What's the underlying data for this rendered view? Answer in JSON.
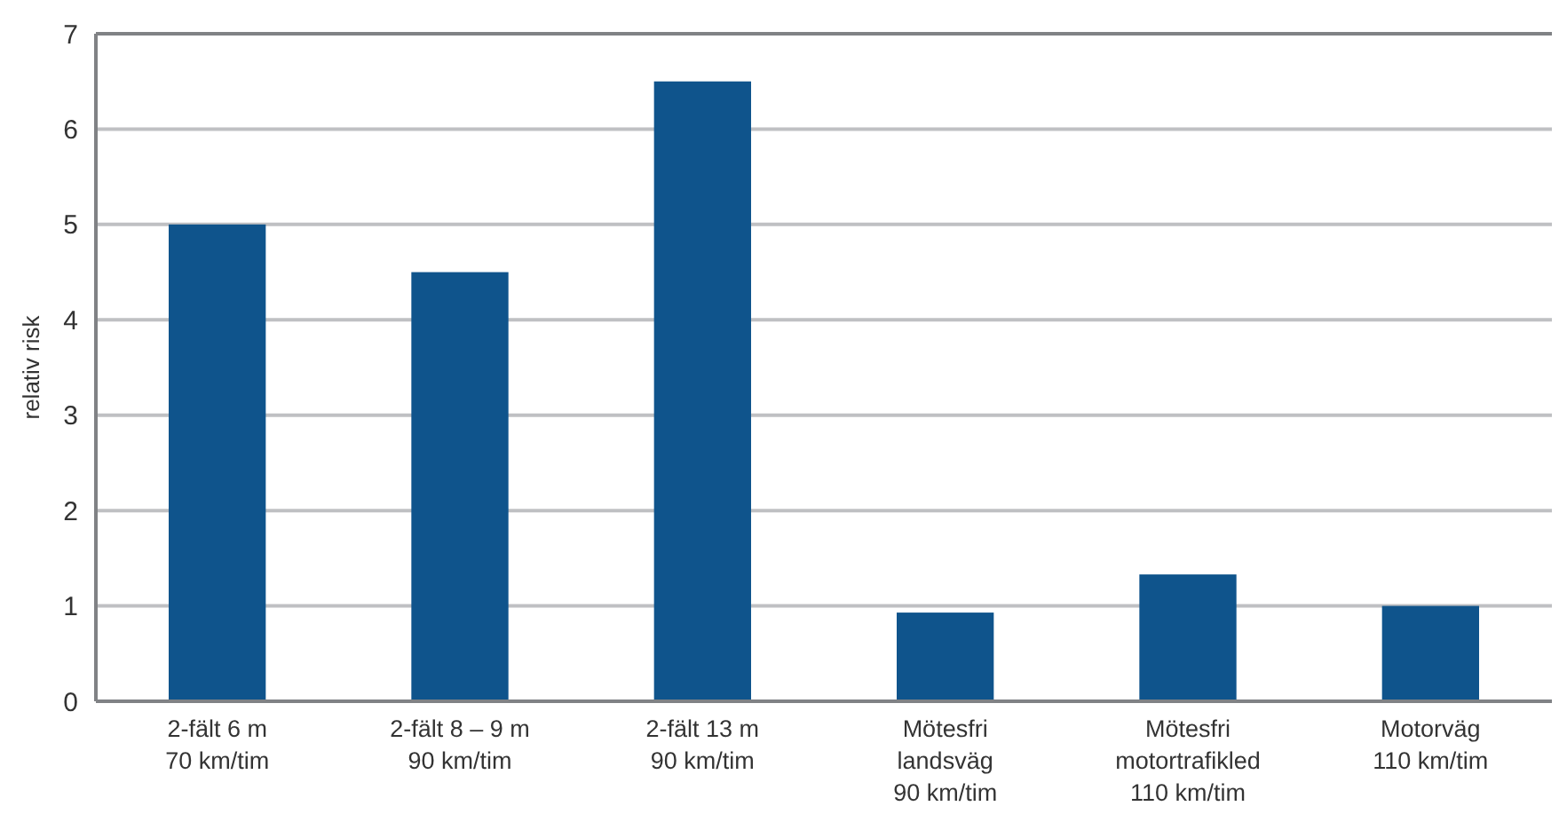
{
  "chart_data": {
    "type": "bar",
    "ylabel": "relativ risk",
    "categories": [
      "2-fält 6 m\n70 km/tim",
      "2-fält 8 – 9 m\n90 km/tim",
      "2-fält 13 m\n90 km/tim",
      "Mötesfri\nlandsväg\n90 km/tim",
      "Mötesfri\nmotortrafikled\n110 km/tim",
      "Motorväg\n110  km/tim"
    ],
    "values": [
      5.0,
      4.5,
      6.5,
      0.93,
      1.33,
      1.0
    ],
    "color": "#0f548c",
    "ylim": [
      0,
      7
    ],
    "yticks": [
      0,
      1,
      2,
      3,
      4,
      5,
      6,
      7
    ],
    "grid": "y"
  }
}
